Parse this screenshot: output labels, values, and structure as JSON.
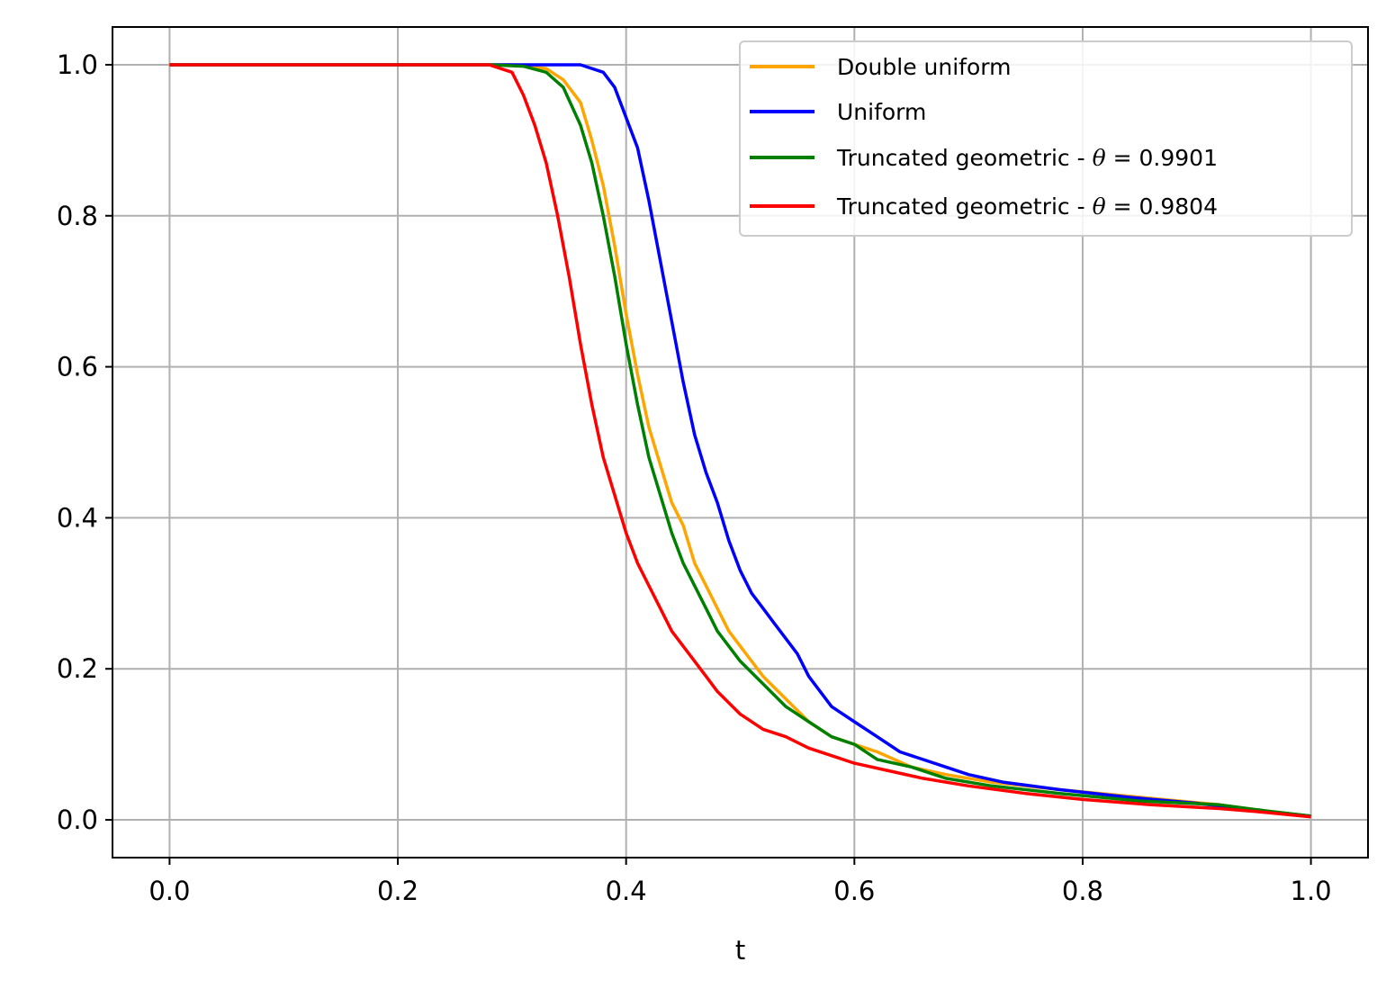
{
  "chart_data": {
    "type": "line",
    "title": "",
    "xlabel": "t",
    "ylabel": "",
    "xlim": [
      -0.05,
      1.05
    ],
    "ylim": [
      -0.05,
      1.05
    ],
    "grid": true,
    "legend_position": "top-right",
    "xticks": [
      "0.0",
      "0.2",
      "0.4",
      "0.6",
      "0.8",
      "1.0"
    ],
    "yticks": [
      "0.0",
      "0.2",
      "0.4",
      "0.6",
      "0.8",
      "1.0"
    ],
    "series": [
      {
        "name": "Double uniform",
        "color": "#ffa500",
        "points": [
          [
            0.0,
            1.0
          ],
          [
            0.3,
            1.0
          ],
          [
            0.33,
            0.995
          ],
          [
            0.345,
            0.98
          ],
          [
            0.36,
            0.95
          ],
          [
            0.37,
            0.9
          ],
          [
            0.38,
            0.84
          ],
          [
            0.39,
            0.76
          ],
          [
            0.4,
            0.67
          ],
          [
            0.41,
            0.59
          ],
          [
            0.42,
            0.52
          ],
          [
            0.43,
            0.47
          ],
          [
            0.44,
            0.42
          ],
          [
            0.45,
            0.39
          ],
          [
            0.46,
            0.34
          ],
          [
            0.47,
            0.31
          ],
          [
            0.48,
            0.28
          ],
          [
            0.49,
            0.25
          ],
          [
            0.5,
            0.23
          ],
          [
            0.52,
            0.19
          ],
          [
            0.54,
            0.16
          ],
          [
            0.56,
            0.13
          ],
          [
            0.58,
            0.11
          ],
          [
            0.6,
            0.1
          ],
          [
            0.62,
            0.09
          ],
          [
            0.65,
            0.07
          ],
          [
            0.68,
            0.06
          ],
          [
            0.72,
            0.05
          ],
          [
            0.78,
            0.04
          ],
          [
            0.85,
            0.03
          ],
          [
            0.92,
            0.02
          ],
          [
            0.96,
            0.012
          ],
          [
            1.0,
            0.005
          ]
        ]
      },
      {
        "name": "Uniform",
        "color": "#0000ff",
        "points": [
          [
            0.0,
            1.0
          ],
          [
            0.36,
            1.0
          ],
          [
            0.38,
            0.99
          ],
          [
            0.39,
            0.97
          ],
          [
            0.4,
            0.93
          ],
          [
            0.41,
            0.89
          ],
          [
            0.42,
            0.82
          ],
          [
            0.43,
            0.74
          ],
          [
            0.44,
            0.66
          ],
          [
            0.45,
            0.58
          ],
          [
            0.46,
            0.51
          ],
          [
            0.47,
            0.46
          ],
          [
            0.48,
            0.42
          ],
          [
            0.49,
            0.37
          ],
          [
            0.5,
            0.33
          ],
          [
            0.51,
            0.3
          ],
          [
            0.52,
            0.28
          ],
          [
            0.53,
            0.26
          ],
          [
            0.54,
            0.24
          ],
          [
            0.55,
            0.22
          ],
          [
            0.56,
            0.19
          ],
          [
            0.58,
            0.15
          ],
          [
            0.6,
            0.13
          ],
          [
            0.62,
            0.11
          ],
          [
            0.64,
            0.09
          ],
          [
            0.66,
            0.08
          ],
          [
            0.68,
            0.07
          ],
          [
            0.7,
            0.06
          ],
          [
            0.73,
            0.05
          ],
          [
            0.78,
            0.04
          ],
          [
            0.84,
            0.03
          ],
          [
            0.9,
            0.022
          ],
          [
            0.95,
            0.013
          ],
          [
            1.0,
            0.005
          ]
        ]
      },
      {
        "name": "Truncated geometric - θ = 0.9901",
        "label_prefix": "Truncated geometric - ",
        "label_value": "= 0.9901",
        "color": "#008000",
        "points": [
          [
            0.0,
            1.0
          ],
          [
            0.28,
            1.0
          ],
          [
            0.31,
            0.998
          ],
          [
            0.33,
            0.99
          ],
          [
            0.345,
            0.97
          ],
          [
            0.36,
            0.92
          ],
          [
            0.37,
            0.87
          ],
          [
            0.38,
            0.8
          ],
          [
            0.39,
            0.72
          ],
          [
            0.4,
            0.63
          ],
          [
            0.41,
            0.55
          ],
          [
            0.42,
            0.48
          ],
          [
            0.43,
            0.43
          ],
          [
            0.44,
            0.38
          ],
          [
            0.45,
            0.34
          ],
          [
            0.46,
            0.31
          ],
          [
            0.47,
            0.28
          ],
          [
            0.48,
            0.25
          ],
          [
            0.49,
            0.23
          ],
          [
            0.5,
            0.21
          ],
          [
            0.52,
            0.18
          ],
          [
            0.54,
            0.15
          ],
          [
            0.56,
            0.13
          ],
          [
            0.58,
            0.11
          ],
          [
            0.6,
            0.1
          ],
          [
            0.62,
            0.08
          ],
          [
            0.65,
            0.07
          ],
          [
            0.68,
            0.055
          ],
          [
            0.72,
            0.045
          ],
          [
            0.78,
            0.035
          ],
          [
            0.85,
            0.025
          ],
          [
            0.92,
            0.02
          ],
          [
            0.96,
            0.012
          ],
          [
            1.0,
            0.005
          ]
        ]
      },
      {
        "name": "Truncated geometric - θ = 0.9804",
        "label_prefix": "Truncated geometric - ",
        "label_value": "= 0.9804",
        "color": "#ff0000",
        "points": [
          [
            0.0,
            1.0
          ],
          [
            0.28,
            1.0
          ],
          [
            0.3,
            0.99
          ],
          [
            0.31,
            0.96
          ],
          [
            0.32,
            0.92
          ],
          [
            0.33,
            0.87
          ],
          [
            0.34,
            0.8
          ],
          [
            0.35,
            0.72
          ],
          [
            0.36,
            0.63
          ],
          [
            0.37,
            0.55
          ],
          [
            0.38,
            0.48
          ],
          [
            0.39,
            0.43
          ],
          [
            0.4,
            0.38
          ],
          [
            0.41,
            0.34
          ],
          [
            0.42,
            0.31
          ],
          [
            0.43,
            0.28
          ],
          [
            0.44,
            0.25
          ],
          [
            0.45,
            0.23
          ],
          [
            0.46,
            0.21
          ],
          [
            0.47,
            0.19
          ],
          [
            0.48,
            0.17
          ],
          [
            0.5,
            0.14
          ],
          [
            0.52,
            0.12
          ],
          [
            0.54,
            0.11
          ],
          [
            0.56,
            0.095
          ],
          [
            0.58,
            0.085
          ],
          [
            0.6,
            0.075
          ],
          [
            0.63,
            0.065
          ],
          [
            0.66,
            0.055
          ],
          [
            0.7,
            0.045
          ],
          [
            0.75,
            0.035
          ],
          [
            0.8,
            0.027
          ],
          [
            0.86,
            0.02
          ],
          [
            0.92,
            0.015
          ],
          [
            0.96,
            0.01
          ],
          [
            1.0,
            0.004
          ]
        ]
      }
    ]
  }
}
